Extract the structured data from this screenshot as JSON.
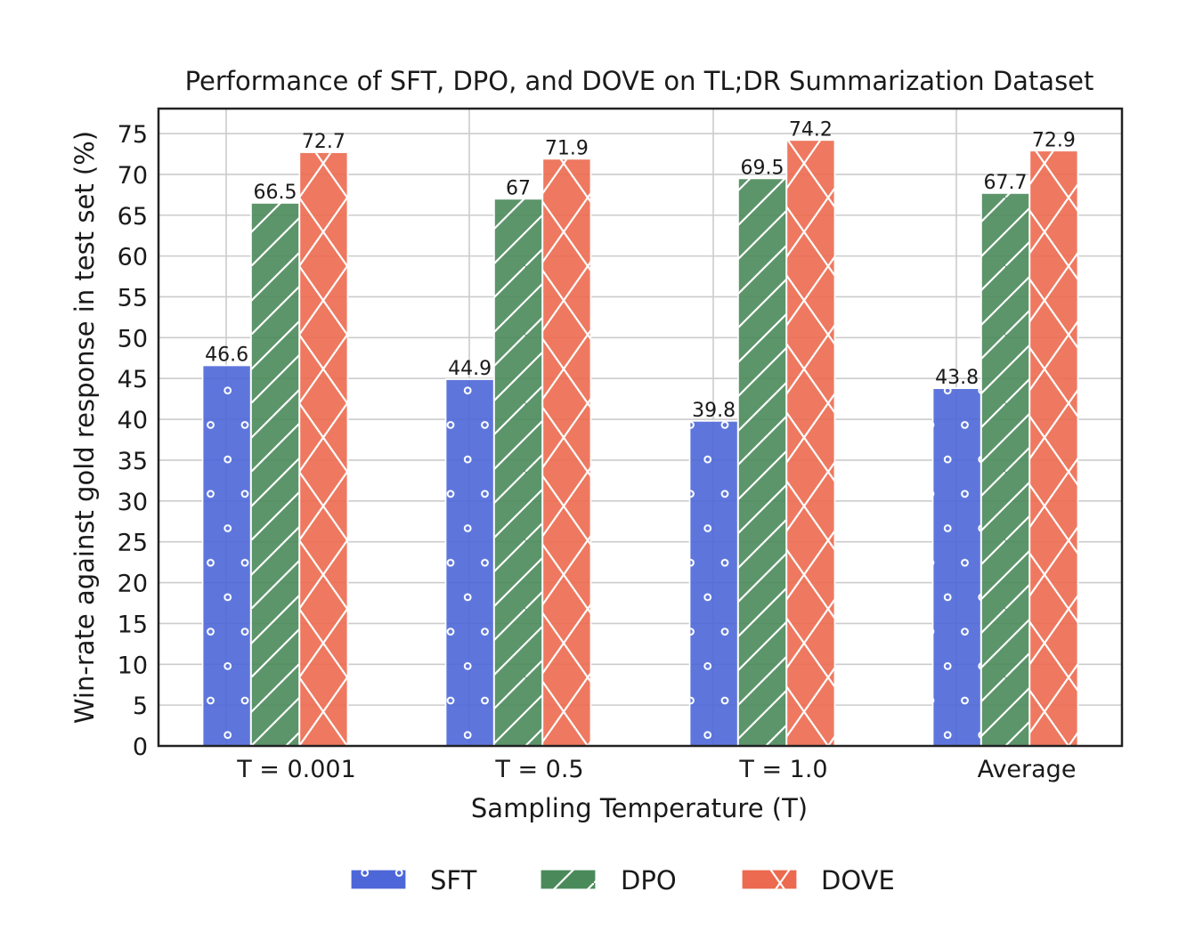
{
  "chart_data": {
    "type": "bar",
    "title": "Performance of SFT, DPO, and DOVE on TL;DR Summarization Dataset",
    "xlabel": "Sampling Temperature (T)",
    "ylabel": "Win-rate against gold response in test set (%)",
    "categories": [
      "T = 0.001",
      "T = 0.5",
      "T = 1.0",
      "Average"
    ],
    "series": [
      {
        "name": "SFT",
        "values": [
          46.6,
          44.9,
          39.8,
          43.8
        ],
        "color": "#4d67d8",
        "hatch": "circles"
      },
      {
        "name": "DPO",
        "values": [
          66.5,
          67,
          69.5,
          67.7
        ],
        "color": "#4a8a5a",
        "hatch": "diagonal"
      },
      {
        "name": "DOVE",
        "values": [
          72.7,
          71.9,
          74.2,
          72.9
        ],
        "color": "#ec6a4f",
        "hatch": "cross"
      }
    ],
    "value_labels": [
      [
        "46.6",
        "44.9",
        "39.8",
        "43.8"
      ],
      [
        "66.5",
        "67",
        "69.5",
        "67.7"
      ],
      [
        "72.7",
        "71.9",
        "74.2",
        "72.9"
      ]
    ],
    "ylim": [
      0,
      78
    ],
    "yticks": [
      0,
      5,
      10,
      15,
      20,
      25,
      30,
      35,
      40,
      45,
      50,
      55,
      60,
      65,
      70,
      75
    ],
    "grid": true,
    "legend_position": "bottom-center"
  }
}
